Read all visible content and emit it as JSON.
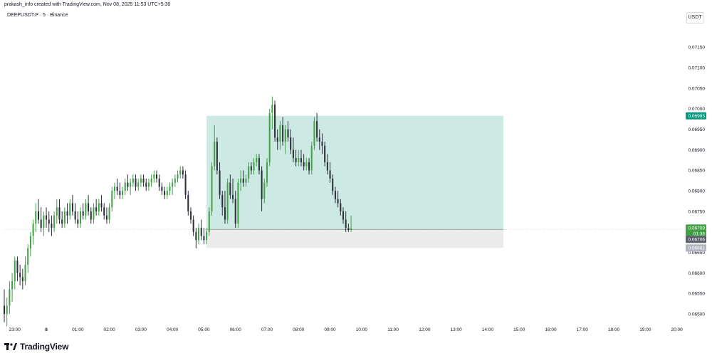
{
  "header": {
    "attribution": "prakash_info created with TradingView.com, Nov 08, 2025 11:53 UTC+5:30",
    "symbol": "DEEPUSDT.P · 5 · Binance",
    "currency": "USDT"
  },
  "footer": {
    "brand": "TradingView"
  },
  "price_tags": {
    "target": "0.06983",
    "last": "0.06709",
    "countdown": "01:38",
    "entry": "0.06706",
    "stop": "0.06661"
  },
  "colors": {
    "up": "#43a047",
    "down": "#2a2e39",
    "target_zone": "#cde9e3",
    "target_tag": "#089981",
    "stop_zone": "#ebebeb",
    "last_tag": "#43a047",
    "entry_tag": "#5d606b",
    "stop_tag": "#b2b5be"
  },
  "chart_data": {
    "type": "candlestick",
    "x_tick_labels": [
      "23:00",
      "8",
      "01:00",
      "02:00",
      "03:00",
      "04:00",
      "05:00",
      "06:00",
      "07:00",
      "08:00",
      "09:00",
      "10:00",
      "11:00",
      "12:00",
      "13:00",
      "14:00",
      "15:00",
      "16:00",
      "17:00",
      "18:00",
      "19:00",
      "20:00"
    ],
    "y_tick_labels": [
      "0.07150",
      "0.07100",
      "0.07050",
      "0.07000",
      "0.06950",
      "0.06900",
      "0.06850",
      "0.06800",
      "0.06750",
      "0.06700",
      "0.06650",
      "0.06600",
      "0.06550",
      "0.06500"
    ],
    "y_ticks": [
      0.0715,
      0.071,
      0.0705,
      0.07,
      0.0695,
      0.069,
      0.0685,
      0.068,
      0.0675,
      0.067,
      0.0665,
      0.066,
      0.0655,
      0.065
    ],
    "ylim": [
      0.06476,
      0.07208
    ],
    "x_range": [
      "22:40",
      "20:10"
    ],
    "candles": [
      {
        "t": "22:40",
        "o": 0.0652,
        "h": 0.0656,
        "l": 0.0648,
        "c": 0.065
      },
      {
        "t": "22:45",
        "o": 0.065,
        "h": 0.0654,
        "l": 0.0647,
        "c": 0.0652
      },
      {
        "t": "22:50",
        "o": 0.0652,
        "h": 0.0658,
        "l": 0.065,
        "c": 0.0656
      },
      {
        "t": "22:55",
        "o": 0.0656,
        "h": 0.066,
        "l": 0.0653,
        "c": 0.0658
      },
      {
        "t": "23:00",
        "o": 0.0658,
        "h": 0.0664,
        "l": 0.0656,
        "c": 0.0663
      },
      {
        "t": "23:05",
        "o": 0.0663,
        "h": 0.0664,
        "l": 0.0658,
        "c": 0.066
      },
      {
        "t": "23:10",
        "o": 0.066,
        "h": 0.0662,
        "l": 0.0657,
        "c": 0.0659
      },
      {
        "t": "23:15",
        "o": 0.0659,
        "h": 0.0661,
        "l": 0.0656,
        "c": 0.0658
      },
      {
        "t": "23:20",
        "o": 0.0658,
        "h": 0.0664,
        "l": 0.0657,
        "c": 0.0662
      },
      {
        "t": "23:25",
        "o": 0.0662,
        "h": 0.0667,
        "l": 0.066,
        "c": 0.0666
      },
      {
        "t": "23:30",
        "o": 0.0666,
        "h": 0.067,
        "l": 0.0664,
        "c": 0.0669
      },
      {
        "t": "23:35",
        "o": 0.0669,
        "h": 0.0673,
        "l": 0.0667,
        "c": 0.0672
      },
      {
        "t": "23:40",
        "o": 0.0672,
        "h": 0.0677,
        "l": 0.067,
        "c": 0.0675
      },
      {
        "t": "23:45",
        "o": 0.0675,
        "h": 0.0678,
        "l": 0.0672,
        "c": 0.0673
      },
      {
        "t": "23:50",
        "o": 0.0673,
        "h": 0.0676,
        "l": 0.067,
        "c": 0.0671
      },
      {
        "t": "23:55",
        "o": 0.0671,
        "h": 0.0675,
        "l": 0.0669,
        "c": 0.0674
      },
      {
        "t": "00:00",
        "o": 0.0674,
        "h": 0.0676,
        "l": 0.0671,
        "c": 0.0673
      },
      {
        "t": "00:05",
        "o": 0.0673,
        "h": 0.0675,
        "l": 0.067,
        "c": 0.0672
      },
      {
        "t": "00:10",
        "o": 0.0672,
        "h": 0.0674,
        "l": 0.0669,
        "c": 0.0671
      },
      {
        "t": "00:15",
        "o": 0.0671,
        "h": 0.0675,
        "l": 0.067,
        "c": 0.0674
      },
      {
        "t": "00:20",
        "o": 0.0674,
        "h": 0.0678,
        "l": 0.0672,
        "c": 0.0676
      },
      {
        "t": "00:25",
        "o": 0.0676,
        "h": 0.0678,
        "l": 0.0672,
        "c": 0.0673
      },
      {
        "t": "00:30",
        "o": 0.0673,
        "h": 0.0675,
        "l": 0.0671,
        "c": 0.0672
      },
      {
        "t": "00:35",
        "o": 0.0672,
        "h": 0.0676,
        "l": 0.0671,
        "c": 0.0675
      },
      {
        "t": "00:40",
        "o": 0.0675,
        "h": 0.0677,
        "l": 0.0672,
        "c": 0.0674
      },
      {
        "t": "00:45",
        "o": 0.0674,
        "h": 0.0678,
        "l": 0.0673,
        "c": 0.0677
      },
      {
        "t": "00:50",
        "o": 0.0677,
        "h": 0.0679,
        "l": 0.0674,
        "c": 0.0675
      },
      {
        "t": "00:55",
        "o": 0.0675,
        "h": 0.0677,
        "l": 0.0672,
        "c": 0.0673
      },
      {
        "t": "01:00",
        "o": 0.0673,
        "h": 0.0675,
        "l": 0.0671,
        "c": 0.0672
      },
      {
        "t": "01:05",
        "o": 0.0672,
        "h": 0.0676,
        "l": 0.0671,
        "c": 0.0675
      },
      {
        "t": "01:10",
        "o": 0.0675,
        "h": 0.0677,
        "l": 0.0673,
        "c": 0.0674
      },
      {
        "t": "01:15",
        "o": 0.0674,
        "h": 0.0678,
        "l": 0.0673,
        "c": 0.0677
      },
      {
        "t": "01:20",
        "o": 0.0677,
        "h": 0.0679,
        "l": 0.0674,
        "c": 0.0675
      },
      {
        "t": "01:25",
        "o": 0.0675,
        "h": 0.0676,
        "l": 0.0672,
        "c": 0.0673
      },
      {
        "t": "01:30",
        "o": 0.0673,
        "h": 0.0677,
        "l": 0.0672,
        "c": 0.0676
      },
      {
        "t": "01:35",
        "o": 0.0676,
        "h": 0.0678,
        "l": 0.0674,
        "c": 0.0675
      },
      {
        "t": "01:40",
        "o": 0.0675,
        "h": 0.0678,
        "l": 0.0674,
        "c": 0.0677
      },
      {
        "t": "01:45",
        "o": 0.0677,
        "h": 0.0679,
        "l": 0.0675,
        "c": 0.0676
      },
      {
        "t": "01:50",
        "o": 0.0676,
        "h": 0.0677,
        "l": 0.0673,
        "c": 0.0674
      },
      {
        "t": "01:55",
        "o": 0.0674,
        "h": 0.0676,
        "l": 0.0672,
        "c": 0.0673
      },
      {
        "t": "02:00",
        "o": 0.0673,
        "h": 0.0677,
        "l": 0.0672,
        "c": 0.0676
      },
      {
        "t": "02:05",
        "o": 0.0676,
        "h": 0.0681,
        "l": 0.0675,
        "c": 0.068
      },
      {
        "t": "02:10",
        "o": 0.068,
        "h": 0.0682,
        "l": 0.0678,
        "c": 0.0681
      },
      {
        "t": "02:15",
        "o": 0.0681,
        "h": 0.0683,
        "l": 0.0679,
        "c": 0.068
      },
      {
        "t": "02:20",
        "o": 0.068,
        "h": 0.0682,
        "l": 0.0678,
        "c": 0.0679
      },
      {
        "t": "02:25",
        "o": 0.0679,
        "h": 0.0681,
        "l": 0.0678,
        "c": 0.068
      },
      {
        "t": "02:30",
        "o": 0.068,
        "h": 0.0683,
        "l": 0.0679,
        "c": 0.0682
      },
      {
        "t": "02:35",
        "o": 0.0682,
        "h": 0.0684,
        "l": 0.068,
        "c": 0.0681
      },
      {
        "t": "02:40",
        "o": 0.0681,
        "h": 0.0683,
        "l": 0.0679,
        "c": 0.0682
      },
      {
        "t": "02:45",
        "o": 0.0682,
        "h": 0.0684,
        "l": 0.0681,
        "c": 0.0683
      },
      {
        "t": "02:50",
        "o": 0.0683,
        "h": 0.0684,
        "l": 0.068,
        "c": 0.0681
      },
      {
        "t": "02:55",
        "o": 0.0681,
        "h": 0.0683,
        "l": 0.068,
        "c": 0.0682
      },
      {
        "t": "03:00",
        "o": 0.0682,
        "h": 0.0684,
        "l": 0.0681,
        "c": 0.0683
      },
      {
        "t": "03:05",
        "o": 0.0683,
        "h": 0.0684,
        "l": 0.0681,
        "c": 0.0682
      },
      {
        "t": "03:10",
        "o": 0.0682,
        "h": 0.0683,
        "l": 0.068,
        "c": 0.0681
      },
      {
        "t": "03:15",
        "o": 0.0681,
        "h": 0.0683,
        "l": 0.068,
        "c": 0.0682
      },
      {
        "t": "03:20",
        "o": 0.0682,
        "h": 0.0684,
        "l": 0.0681,
        "c": 0.0683
      },
      {
        "t": "03:25",
        "o": 0.0683,
        "h": 0.0685,
        "l": 0.0682,
        "c": 0.0684
      },
      {
        "t": "03:30",
        "o": 0.0684,
        "h": 0.0685,
        "l": 0.0682,
        "c": 0.0683
      },
      {
        "t": "03:35",
        "o": 0.0683,
        "h": 0.0684,
        "l": 0.068,
        "c": 0.0681
      },
      {
        "t": "03:40",
        "o": 0.0681,
        "h": 0.0682,
        "l": 0.0679,
        "c": 0.068
      },
      {
        "t": "03:45",
        "o": 0.068,
        "h": 0.0681,
        "l": 0.0678,
        "c": 0.0679
      },
      {
        "t": "03:50",
        "o": 0.0679,
        "h": 0.0681,
        "l": 0.0678,
        "c": 0.068
      },
      {
        "t": "03:55",
        "o": 0.068,
        "h": 0.0682,
        "l": 0.0679,
        "c": 0.0681
      },
      {
        "t": "04:00",
        "o": 0.0681,
        "h": 0.0683,
        "l": 0.0679,
        "c": 0.0682
      },
      {
        "t": "04:05",
        "o": 0.0682,
        "h": 0.0684,
        "l": 0.0681,
        "c": 0.0683
      },
      {
        "t": "04:10",
        "o": 0.0683,
        "h": 0.0685,
        "l": 0.0682,
        "c": 0.0684
      },
      {
        "t": "04:15",
        "o": 0.0684,
        "h": 0.0686,
        "l": 0.0683,
        "c": 0.0685
      },
      {
        "t": "04:20",
        "o": 0.0685,
        "h": 0.0686,
        "l": 0.0683,
        "c": 0.0684
      },
      {
        "t": "04:25",
        "o": 0.0684,
        "h": 0.0685,
        "l": 0.0678,
        "c": 0.0679
      },
      {
        "t": "04:30",
        "o": 0.0679,
        "h": 0.068,
        "l": 0.0674,
        "c": 0.0675
      },
      {
        "t": "04:35",
        "o": 0.0675,
        "h": 0.0676,
        "l": 0.0672,
        "c": 0.0673
      },
      {
        "t": "04:40",
        "o": 0.0673,
        "h": 0.0674,
        "l": 0.0669,
        "c": 0.067
      },
      {
        "t": "04:45",
        "o": 0.067,
        "h": 0.0671,
        "l": 0.0666,
        "c": 0.0668
      },
      {
        "t": "04:50",
        "o": 0.0668,
        "h": 0.0672,
        "l": 0.0667,
        "c": 0.0671
      },
      {
        "t": "04:55",
        "o": 0.0671,
        "h": 0.0673,
        "l": 0.0668,
        "c": 0.0669
      },
      {
        "t": "05:00",
        "o": 0.0669,
        "h": 0.0671,
        "l": 0.0667,
        "c": 0.0668
      },
      {
        "t": "05:05",
        "o": 0.0668,
        "h": 0.0671,
        "l": 0.0667,
        "c": 0.067
      },
      {
        "t": "05:10",
        "o": 0.067,
        "h": 0.0676,
        "l": 0.0669,
        "c": 0.0675
      },
      {
        "t": "05:15",
        "o": 0.0675,
        "h": 0.0687,
        "l": 0.0674,
        "c": 0.0686
      },
      {
        "t": "05:20",
        "o": 0.0686,
        "h": 0.0696,
        "l": 0.0685,
        "c": 0.0692
      },
      {
        "t": "05:25",
        "o": 0.0692,
        "h": 0.0693,
        "l": 0.0684,
        "c": 0.0685
      },
      {
        "t": "05:30",
        "o": 0.0685,
        "h": 0.0687,
        "l": 0.0678,
        "c": 0.0679
      },
      {
        "t": "05:35",
        "o": 0.0679,
        "h": 0.068,
        "l": 0.0674,
        "c": 0.0676
      },
      {
        "t": "05:40",
        "o": 0.0676,
        "h": 0.068,
        "l": 0.0672,
        "c": 0.0673
      },
      {
        "t": "05:45",
        "o": 0.0673,
        "h": 0.0683,
        "l": 0.0672,
        "c": 0.0682
      },
      {
        "t": "05:50",
        "o": 0.0682,
        "h": 0.0684,
        "l": 0.0678,
        "c": 0.0679
      },
      {
        "t": "05:55",
        "o": 0.0679,
        "h": 0.0683,
        "l": 0.0677,
        "c": 0.0678
      },
      {
        "t": "06:00",
        "o": 0.0678,
        "h": 0.068,
        "l": 0.0671,
        "c": 0.0672
      },
      {
        "t": "06:05",
        "o": 0.0672,
        "h": 0.0683,
        "l": 0.0671,
        "c": 0.0682
      },
      {
        "t": "06:10",
        "o": 0.0682,
        "h": 0.0685,
        "l": 0.068,
        "c": 0.0683
      },
      {
        "t": "06:15",
        "o": 0.0683,
        "h": 0.0685,
        "l": 0.0681,
        "c": 0.0682
      },
      {
        "t": "06:20",
        "o": 0.0682,
        "h": 0.0684,
        "l": 0.0681,
        "c": 0.0683
      },
      {
        "t": "06:25",
        "o": 0.0683,
        "h": 0.0687,
        "l": 0.0682,
        "c": 0.0686
      },
      {
        "t": "06:30",
        "o": 0.0686,
        "h": 0.0687,
        "l": 0.0684,
        "c": 0.0685
      },
      {
        "t": "06:35",
        "o": 0.0685,
        "h": 0.0688,
        "l": 0.0684,
        "c": 0.0687
      },
      {
        "t": "06:40",
        "o": 0.0687,
        "h": 0.0689,
        "l": 0.0686,
        "c": 0.0688
      },
      {
        "t": "06:45",
        "o": 0.0688,
        "h": 0.0689,
        "l": 0.0684,
        "c": 0.0685
      },
      {
        "t": "06:50",
        "o": 0.0685,
        "h": 0.0686,
        "l": 0.0675,
        "c": 0.0678
      },
      {
        "t": "06:55",
        "o": 0.0678,
        "h": 0.0683,
        "l": 0.0677,
        "c": 0.0682
      },
      {
        "t": "07:00",
        "o": 0.0682,
        "h": 0.0688,
        "l": 0.0681,
        "c": 0.0687
      },
      {
        "t": "07:05",
        "o": 0.0687,
        "h": 0.07,
        "l": 0.0686,
        "c": 0.0699
      },
      {
        "t": "07:10",
        "o": 0.0699,
        "h": 0.0703,
        "l": 0.0695,
        "c": 0.0701
      },
      {
        "t": "07:15",
        "o": 0.0701,
        "h": 0.0702,
        "l": 0.0692,
        "c": 0.0693
      },
      {
        "t": "07:20",
        "o": 0.0693,
        "h": 0.0695,
        "l": 0.069,
        "c": 0.0692
      },
      {
        "t": "07:25",
        "o": 0.0692,
        "h": 0.0697,
        "l": 0.069,
        "c": 0.0696
      },
      {
        "t": "07:30",
        "o": 0.0696,
        "h": 0.0698,
        "l": 0.0691,
        "c": 0.0692
      },
      {
        "t": "07:35",
        "o": 0.0692,
        "h": 0.0696,
        "l": 0.0689,
        "c": 0.0695
      },
      {
        "t": "07:40",
        "o": 0.0695,
        "h": 0.0697,
        "l": 0.0692,
        "c": 0.0693
      },
      {
        "t": "07:45",
        "o": 0.0693,
        "h": 0.0695,
        "l": 0.0689,
        "c": 0.069
      },
      {
        "t": "07:50",
        "o": 0.069,
        "h": 0.0693,
        "l": 0.0687,
        "c": 0.0688
      },
      {
        "t": "07:55",
        "o": 0.0688,
        "h": 0.069,
        "l": 0.0686,
        "c": 0.0687
      },
      {
        "t": "08:00",
        "o": 0.0687,
        "h": 0.069,
        "l": 0.0686,
        "c": 0.0688
      },
      {
        "t": "08:05",
        "o": 0.0688,
        "h": 0.069,
        "l": 0.0686,
        "c": 0.0687
      },
      {
        "t": "08:10",
        "o": 0.0687,
        "h": 0.0689,
        "l": 0.0685,
        "c": 0.0686
      },
      {
        "t": "08:15",
        "o": 0.0686,
        "h": 0.0688,
        "l": 0.0685,
        "c": 0.0687
      },
      {
        "t": "08:20",
        "o": 0.0687,
        "h": 0.0688,
        "l": 0.0684,
        "c": 0.0685
      },
      {
        "t": "08:25",
        "o": 0.0685,
        "h": 0.0692,
        "l": 0.0684,
        "c": 0.0691
      },
      {
        "t": "08:30",
        "o": 0.0691,
        "h": 0.0698,
        "l": 0.069,
        "c": 0.0697
      },
      {
        "t": "08:35",
        "o": 0.0697,
        "h": 0.0699,
        "l": 0.0692,
        "c": 0.0693
      },
      {
        "t": "08:40",
        "o": 0.0693,
        "h": 0.0695,
        "l": 0.069,
        "c": 0.0692
      },
      {
        "t": "08:45",
        "o": 0.0692,
        "h": 0.0694,
        "l": 0.0689,
        "c": 0.0691
      },
      {
        "t": "08:50",
        "o": 0.0691,
        "h": 0.0692,
        "l": 0.0686,
        "c": 0.0687
      },
      {
        "t": "08:55",
        "o": 0.0687,
        "h": 0.0689,
        "l": 0.0684,
        "c": 0.0685
      },
      {
        "t": "09:00",
        "o": 0.0685,
        "h": 0.0687,
        "l": 0.0682,
        "c": 0.0683
      },
      {
        "t": "09:05",
        "o": 0.0683,
        "h": 0.0684,
        "l": 0.0679,
        "c": 0.068
      },
      {
        "t": "09:10",
        "o": 0.068,
        "h": 0.0681,
        "l": 0.0677,
        "c": 0.0678
      },
      {
        "t": "09:15",
        "o": 0.0678,
        "h": 0.068,
        "l": 0.0676,
        "c": 0.0677
      },
      {
        "t": "09:20",
        "o": 0.0677,
        "h": 0.0678,
        "l": 0.0674,
        "c": 0.0675
      },
      {
        "t": "09:25",
        "o": 0.0675,
        "h": 0.0676,
        "l": 0.0672,
        "c": 0.0673
      },
      {
        "t": "09:30",
        "o": 0.0673,
        "h": 0.0675,
        "l": 0.067,
        "c": 0.0671
      },
      {
        "t": "09:35",
        "o": 0.0671,
        "h": 0.0672,
        "l": 0.067,
        "c": 0.06705
      },
      {
        "t": "09:40",
        "o": 0.06705,
        "h": 0.0674,
        "l": 0.067,
        "c": 0.06709
      }
    ],
    "position": {
      "entry": 0.06706,
      "target": 0.06983,
      "stop": 0.06661,
      "start": "05:05",
      "end": "14:30"
    }
  }
}
